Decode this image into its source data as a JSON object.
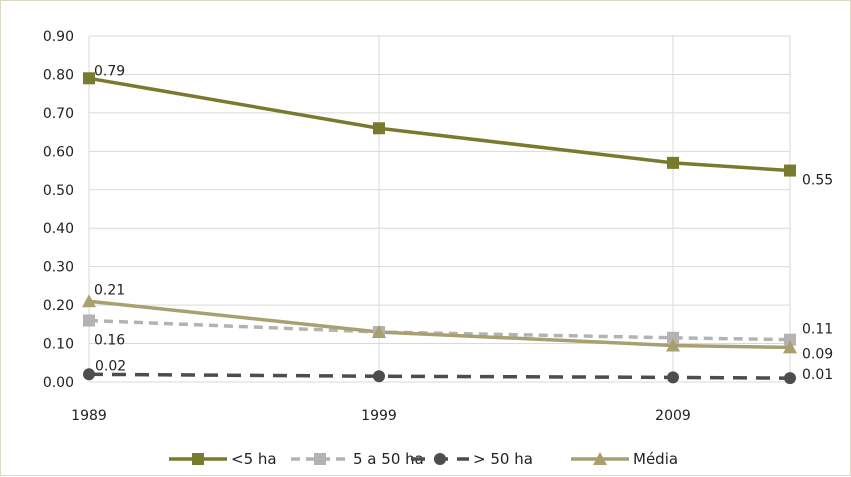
{
  "chart_data": {
    "type": "line",
    "title": "",
    "xlabel": "",
    "ylabel": "",
    "x": [
      "1989",
      "1999",
      "2009",
      ""
    ],
    "x_ticks": [
      "1989",
      "1999",
      "2009"
    ],
    "ylim": [
      0,
      0.9
    ],
    "y_ticks": [
      "0.00",
      "0.10",
      "0.20",
      "0.30",
      "0.40",
      "0.50",
      "0.60",
      "0.70",
      "0.80",
      "0.90"
    ],
    "grid": "vertical and horizontal",
    "legend_position": "bottom",
    "series": [
      {
        "name": "<5 ha",
        "values": [
          0.79,
          0.66,
          0.57,
          0.55
        ],
        "color": "#7a7a2e",
        "dash": "solid",
        "marker": "square",
        "labels": [
          "0.79",
          "",
          "",
          "0.55"
        ]
      },
      {
        "name": "5 a 50 ha",
        "values": [
          0.16,
          0.13,
          0.115,
          0.11
        ],
        "color": "#b3b3b3",
        "dash": "dashed",
        "marker": "square",
        "labels": [
          "0.16",
          "",
          "",
          "0.11"
        ]
      },
      {
        "name": "> 50 ha",
        "values": [
          0.02,
          0.015,
          0.012,
          0.01
        ],
        "color": "#4d4d4d",
        "dash": "dashed",
        "marker": "circle",
        "labels": [
          "0.02",
          "",
          "",
          "0.01"
        ]
      },
      {
        "name": "Média",
        "values": [
          0.21,
          0.13,
          0.095,
          0.09
        ],
        "color": "#a8a070",
        "dash": "solid",
        "marker": "triangle",
        "labels": [
          "0.21",
          "",
          "",
          "0.09"
        ]
      }
    ]
  }
}
